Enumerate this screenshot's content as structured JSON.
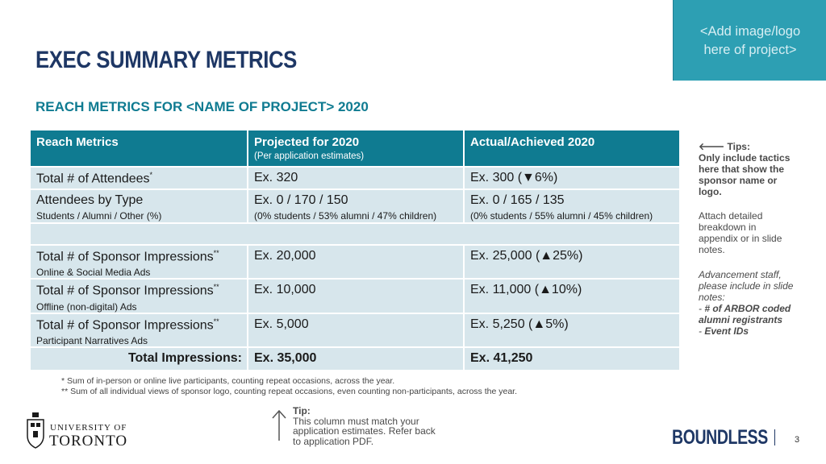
{
  "logo_placeholder": "<Add image/logo\nhere of project>",
  "title": "EXEC SUMMARY METRICS",
  "subtitle": "REACH METRICS FOR <NAME OF PROJECT> 2020",
  "table": {
    "headers": {
      "col1": "Reach Metrics",
      "col2": "Projected for 2020",
      "col2_sub": "(Per application estimates)",
      "col3": "Actual/Achieved 2020"
    },
    "rows": [
      {
        "label": "Total # of Attendees",
        "mark": "*",
        "sub": "",
        "projected": "Ex. 320",
        "projected_sub": "",
        "actual": "Ex. 300 (▼6%)",
        "actual_sub": ""
      },
      {
        "label": "Attendees by Type",
        "mark": "",
        "sub": "Students / Alumni / Other (%)",
        "projected": "Ex. 0 / 170 / 150",
        "projected_sub": "(0% students / 53% alumni / 47% children)",
        "actual": "Ex. 0 / 165 / 135",
        "actual_sub": "(0% students / 55% alumni / 45% children)"
      },
      {
        "label": "Total # of Sponsor Impressions",
        "mark": "**",
        "sub": "Online & Social Media Ads",
        "projected": "Ex. 20,000",
        "projected_sub": "",
        "actual": "Ex. 25,000 (▲25%)",
        "actual_sub": ""
      },
      {
        "label": "Total # of Sponsor Impressions",
        "mark": "**",
        "sub": "Offline (non-digital) Ads",
        "projected": "Ex. 10,000",
        "projected_sub": "",
        "actual": "Ex. 11,000 (▲10%)",
        "actual_sub": ""
      },
      {
        "label": "Total # of Sponsor Impressions",
        "mark": "**",
        "sub": "Participant Narratives Ads",
        "projected": "Ex. 5,000",
        "projected_sub": "",
        "actual": "Ex. 5,250 (▲5%)",
        "actual_sub": ""
      }
    ],
    "total": {
      "label": "Total Impressions:",
      "projected": "Ex. 35,000",
      "actual": "Ex. 41,250"
    }
  },
  "footnotes": [
    "* Sum of in-person or online live participants, counting repeat occasions, across the year.",
    "** Sum of all individual views of sponsor logo, counting repeat occasions, even counting non-participants, across the year."
  ],
  "tips": {
    "heading": "🡐 Tips:",
    "line1": "Only include tactics here that show the sponsor name or logo.",
    "block2": "Attach detailed breakdown in appendix or in slide notes.",
    "block3_intro": "Advancement staff, please include in slide notes:",
    "block3_item1": "# of ARBOR coded alumni registrants",
    "block3_item2": "Event IDs"
  },
  "bottom_tip": {
    "heading": "Tip:",
    "text": "This column must match your application estimates. Refer back to application PDF."
  },
  "footer": {
    "uoft_line1": "UNIVERSITY OF",
    "uoft_line2": "TORONTO",
    "brand": "BOUNDLESS",
    "page_number": "3"
  },
  "colors": {
    "title": "#1e3765",
    "accent": "#0f7b91",
    "header_bg": "#0f7b91",
    "cell_bg": "#d7e6ec",
    "logo_box": "#2d9fb3"
  }
}
